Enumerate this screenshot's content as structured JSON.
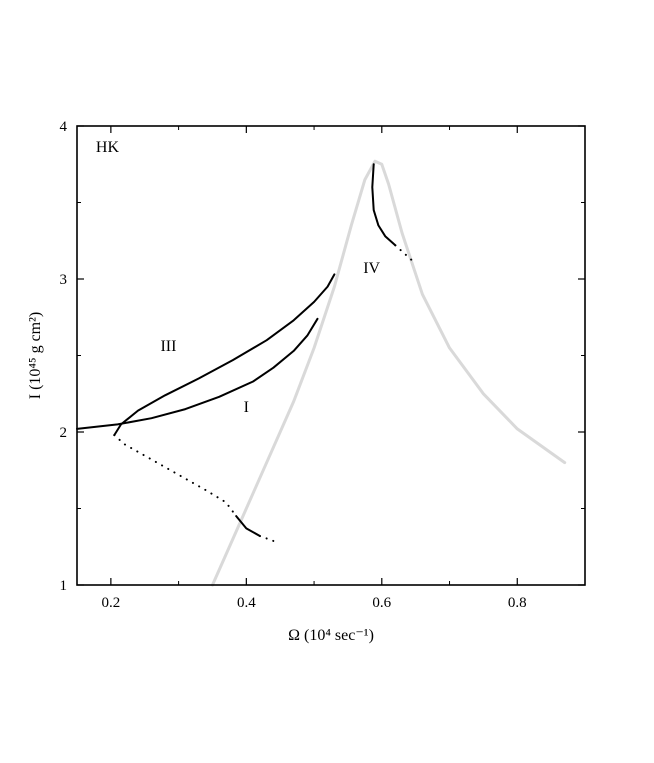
{
  "chart_data": {
    "type": "line",
    "title": "",
    "panel_label": "HK",
    "xlabel": "Ω (10⁴ sec⁻¹)",
    "ylabel": "I (10⁴⁵ g cm²)",
    "xlim": [
      0.15,
      0.9
    ],
    "ylim": [
      1,
      4
    ],
    "xticks": [
      0.2,
      0.4,
      0.6,
      0.8
    ],
    "xtick_labels": [
      "0.2",
      "0.4",
      "0.6",
      "0.8"
    ],
    "yticks": [
      1,
      2,
      3,
      4
    ],
    "ytick_labels": [
      "1",
      "2",
      "3",
      "4"
    ],
    "grid": false,
    "colors": {
      "curve": "#000000",
      "envelope": "#d9d9d9"
    },
    "series": [
      {
        "name": "envelope",
        "style": "gray",
        "x": [
          0.35,
          0.38,
          0.41,
          0.44,
          0.47,
          0.5,
          0.53,
          0.555,
          0.575,
          0.59,
          0.6,
          0.61,
          0.63,
          0.66,
          0.7,
          0.75,
          0.8,
          0.87
        ],
        "y": [
          1.0,
          1.3,
          1.6,
          1.9,
          2.2,
          2.55,
          2.95,
          3.35,
          3.65,
          3.77,
          3.75,
          3.62,
          3.3,
          2.9,
          2.55,
          2.25,
          2.02,
          1.8
        ]
      },
      {
        "name": "I",
        "label": "I",
        "style": "solid",
        "x": [
          0.15,
          0.21,
          0.26,
          0.31,
          0.36,
          0.41,
          0.44,
          0.47,
          0.49,
          0.505
        ],
        "y": [
          2.02,
          2.05,
          2.09,
          2.15,
          2.23,
          2.33,
          2.42,
          2.53,
          2.63,
          2.74
        ]
      },
      {
        "name": "III",
        "label": "III",
        "style": "solid",
        "x": [
          0.205,
          0.215,
          0.24,
          0.28,
          0.33,
          0.38,
          0.43,
          0.47,
          0.5,
          0.52,
          0.53
        ],
        "y": [
          1.98,
          2.05,
          2.14,
          2.24,
          2.35,
          2.47,
          2.6,
          2.73,
          2.85,
          2.95,
          3.03
        ]
      },
      {
        "name": "III-lower-dotted",
        "style": "dotted",
        "x": [
          0.205,
          0.22,
          0.26,
          0.3,
          0.34,
          0.37,
          0.385
        ],
        "y": [
          1.98,
          1.92,
          1.82,
          1.72,
          1.62,
          1.54,
          1.45
        ]
      },
      {
        "name": "III-lower-solid",
        "style": "solid",
        "x": [
          0.385,
          0.4,
          0.42
        ],
        "y": [
          1.45,
          1.37,
          1.32
        ]
      },
      {
        "name": "III-lower-tail",
        "style": "dotted",
        "x": [
          0.42,
          0.445
        ],
        "y": [
          1.32,
          1.28
        ]
      },
      {
        "name": "IV",
        "label": "IV",
        "style": "solid",
        "x": [
          0.588,
          0.586,
          0.588,
          0.595,
          0.605,
          0.62
        ],
        "y": [
          3.75,
          3.6,
          3.45,
          3.35,
          3.28,
          3.22
        ]
      },
      {
        "name": "IV-tail",
        "style": "dotted",
        "x": [
          0.62,
          0.635,
          0.65
        ],
        "y": [
          3.22,
          3.16,
          3.1
        ]
      }
    ],
    "annotations": [
      {
        "text": "HK",
        "x": 0.195,
        "y": 3.83
      },
      {
        "text": "III",
        "x": 0.285,
        "y": 2.53
      },
      {
        "text": "I",
        "x": 0.4,
        "y": 2.13
      },
      {
        "text": "IV",
        "x": 0.585,
        "y": 3.04
      }
    ]
  }
}
